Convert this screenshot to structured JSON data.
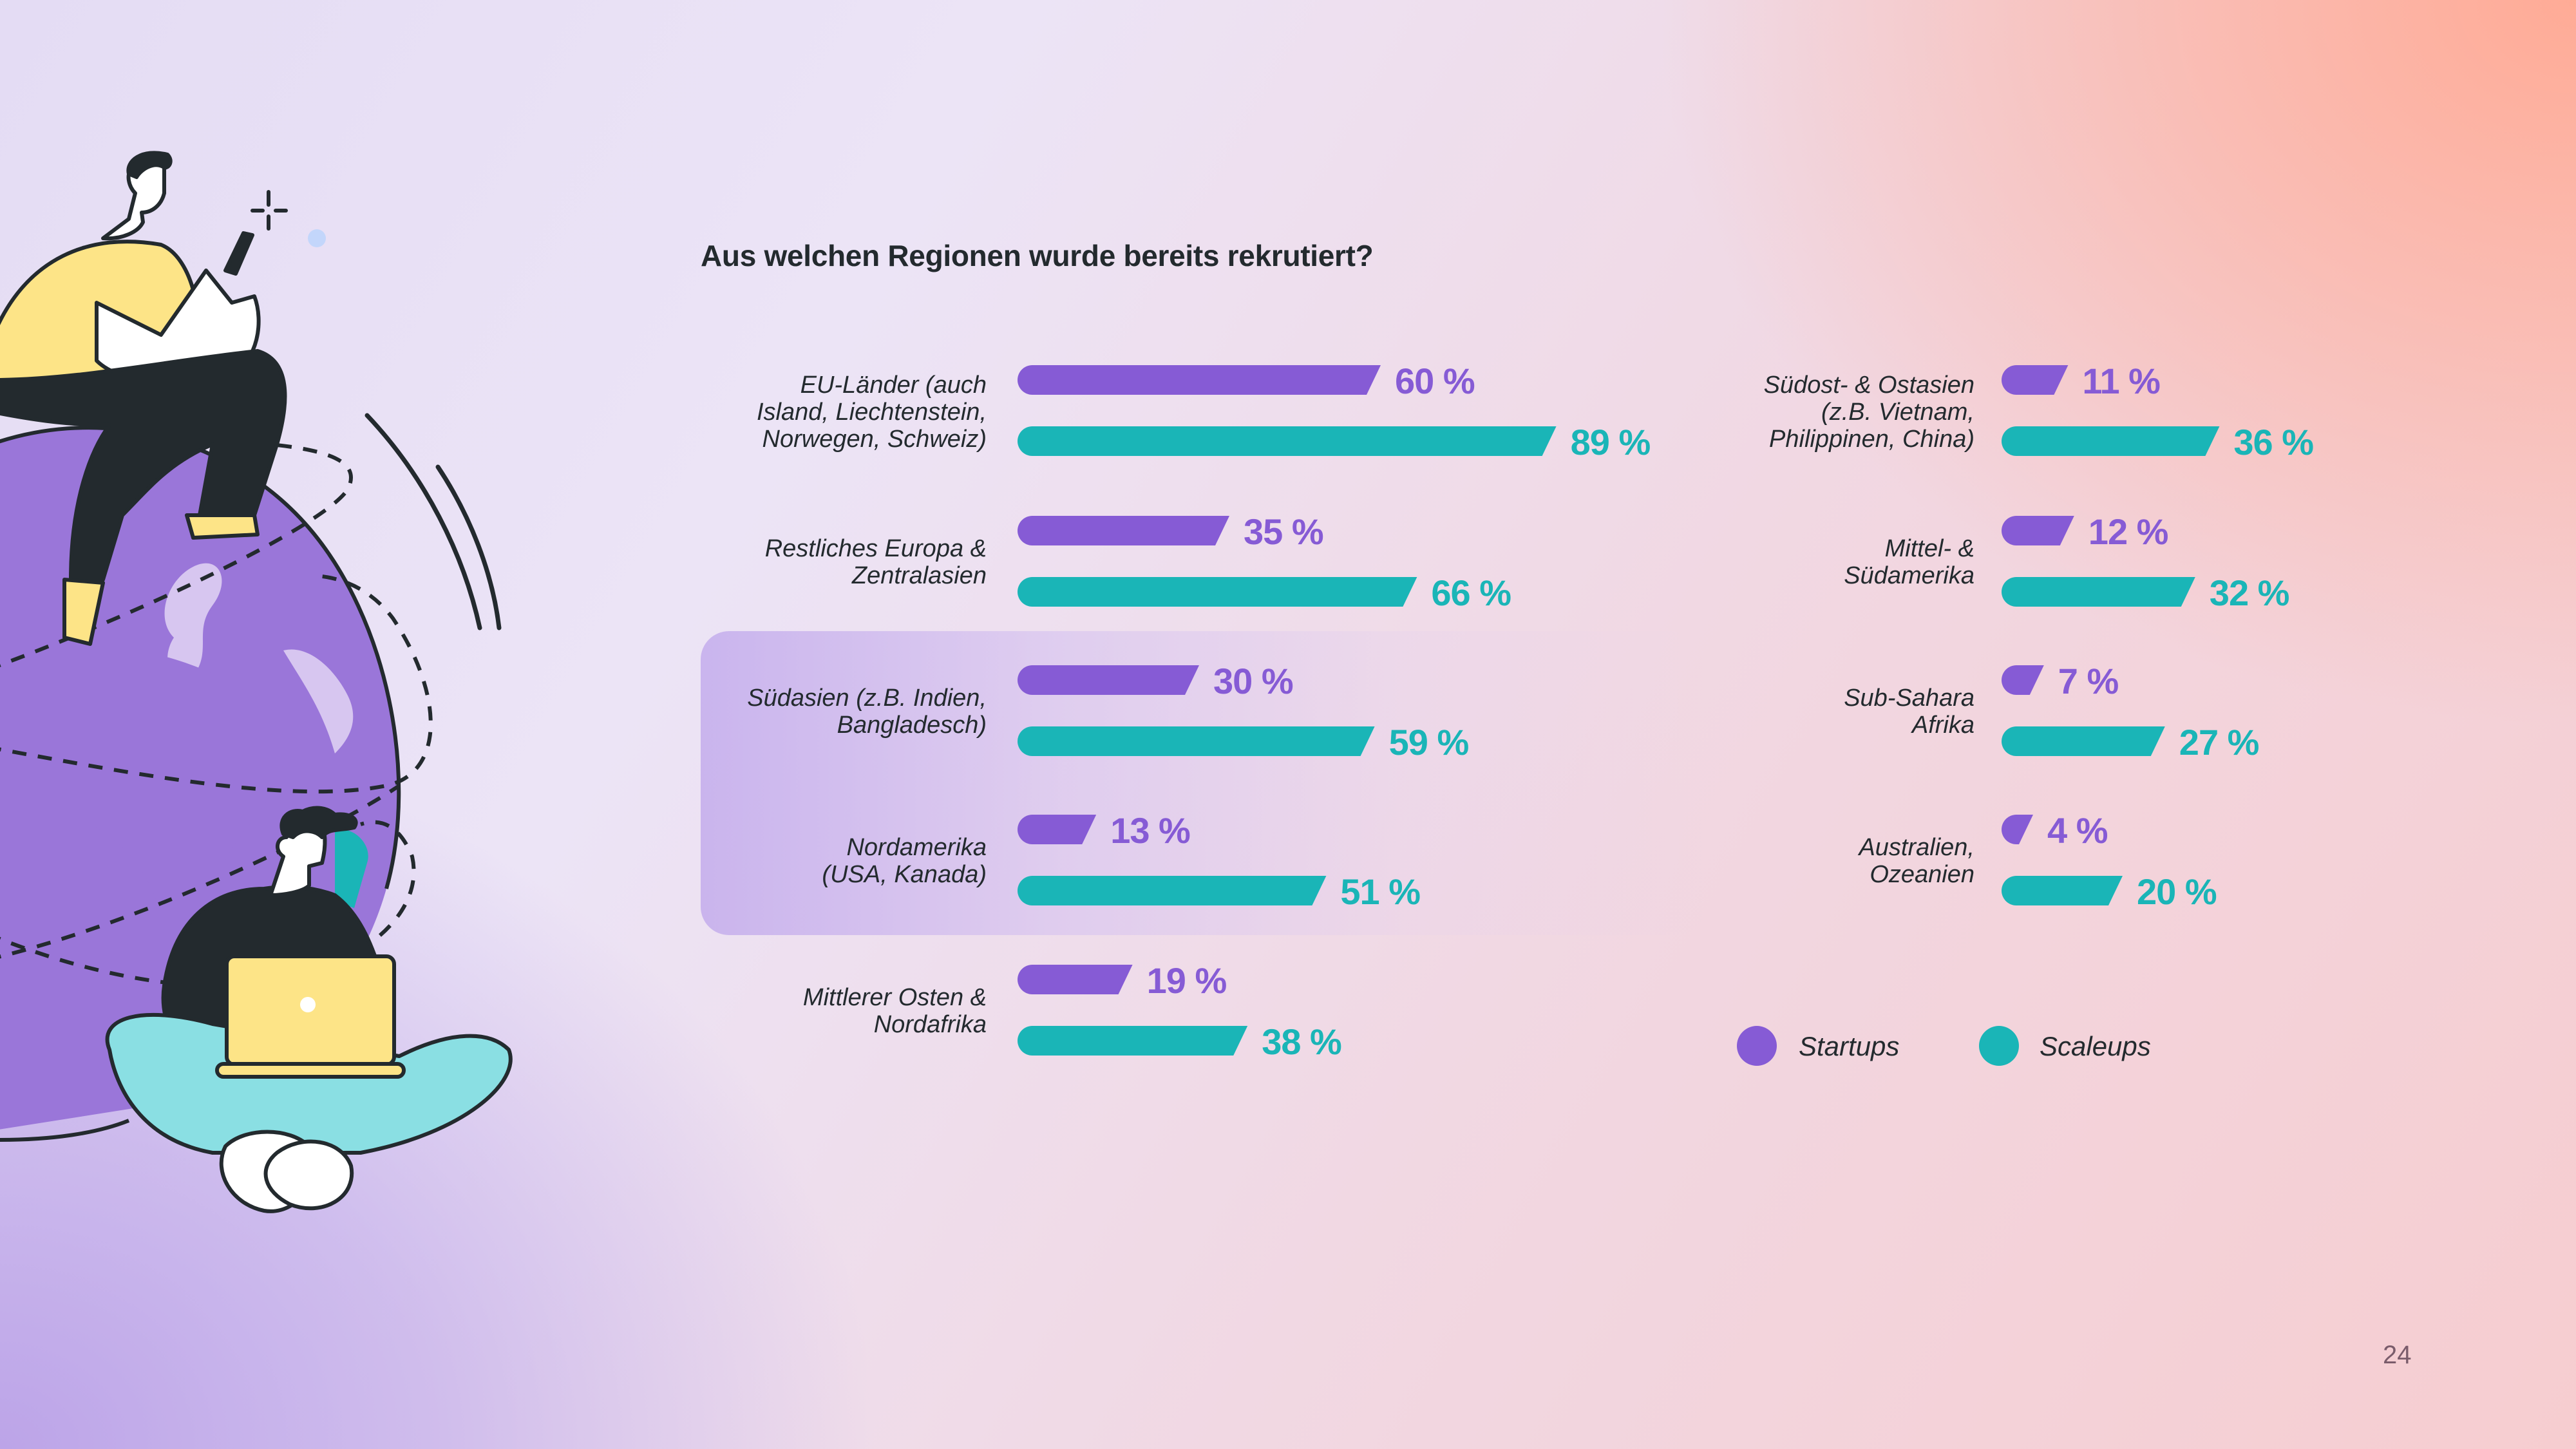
{
  "slide": {
    "title": "Aus welchen Regionen wurde bereits rekrutiert?",
    "page_number": "24"
  },
  "colors": {
    "startups": "#865bd5",
    "scaleups": "#1ab5b7",
    "text": "#232a2e"
  },
  "legend": [
    {
      "label": "Startups",
      "color": "#865bd5"
    },
    {
      "label": "Scaleups",
      "color": "#1ab5b7"
    }
  ],
  "chart_data": {
    "type": "bar",
    "orientation": "horizontal",
    "title": "Aus welchen Regionen wurde bereits rekrutiert?",
    "xlabel": "",
    "ylabel": "",
    "unit": "%",
    "xlim": [
      0,
      100
    ],
    "grid": false,
    "legend_position": "bottom-right",
    "highlighted_categories": [
      "Südasien (z.B. Indien, Bangladesch)",
      "Nordamerika (USA, Kanada)"
    ],
    "categories": [
      "EU-Länder (auch Island, Liechtenstein, Norwegen, Schweiz)",
      "Restliches Europa & Zentralasien",
      "Südasien (z.B. Indien, Bangladesch)",
      "Nordamerika (USA, Kanada)",
      "Mittlerer Osten & Nordafrika",
      "Südost- & Ostasien (z.B. Vietnam, Philippinen, China)",
      "Mittel- & Südamerika",
      "Sub-Sahara Afrika",
      "Australien, Ozeanien"
    ],
    "category_display": [
      "EU-Länder (auch\nIsland, Liechtenstein,\nNorwegen, Schweiz)",
      "Restliches Europa &\nZentralasien",
      "Südasien (z.B. Indien,\nBangladesch)",
      "Nordamerika\n(USA, Kanada)",
      "Mittlerer Osten &\nNordafrika",
      "Südost- & Ostasien\n(z.B. Vietnam,\nPhilippinen, China)",
      "Mittel- &\nSüdamerika",
      "Sub-Sahara\nAfrika",
      "Australien,\nOzeanien"
    ],
    "series": [
      {
        "name": "Startups",
        "color": "#865bd5",
        "values": [
          60,
          35,
          30,
          13,
          19,
          11,
          12,
          7,
          4
        ]
      },
      {
        "name": "Scaleups",
        "color": "#1ab5b7",
        "values": [
          89,
          66,
          59,
          51,
          38,
          36,
          32,
          27,
          20
        ]
      }
    ],
    "value_labels": {
      "Startups": [
        "60 %",
        "35 %",
        "30 %",
        "13 %",
        "19 %",
        "11 %",
        "12 %",
        "7 %",
        "4 %"
      ],
      "Scaleups": [
        "89 %",
        "66 %",
        "59 %",
        "51 %",
        "38 %",
        "36 %",
        "32 %",
        "27 %",
        "20 %"
      ]
    }
  }
}
